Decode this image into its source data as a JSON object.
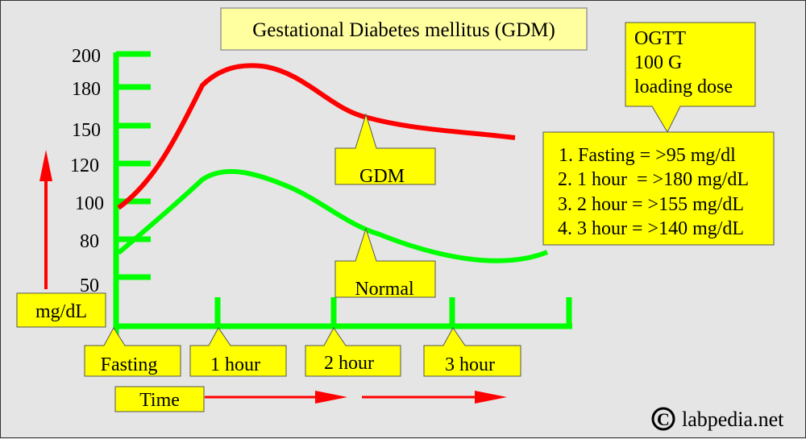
{
  "title": "Gestational Diabetes mellitus (GDM)",
  "y_axis": {
    "unit_label": "mg/dL",
    "ticks": [
      "200",
      "180",
      "150",
      "120",
      "100",
      "80",
      "50"
    ]
  },
  "x_axis": {
    "ticks": [
      "Fasting",
      "1 hour",
      "2 hour",
      "3 hour"
    ],
    "label": "Time"
  },
  "curves": [
    {
      "label": "GDM",
      "color": "#ff0000"
    },
    {
      "label": "Normal",
      "color": "#00ff00"
    }
  ],
  "ogtt_box": {
    "lines": [
      "OGTT",
      "100 G",
      "loading dose"
    ]
  },
  "criteria_box": {
    "lines": [
      "1. Fasting = >95 mg/dl",
      "2. 1 hour  = >180 mg/dL",
      "3. 2 hour = >155 mg/dL",
      "4. 3 hour = >140 mg/dL"
    ]
  },
  "copyright": "labpedia.net",
  "colors": {
    "axis": "#00ff00",
    "arrow": "#ff0000",
    "callout": "#ffff00",
    "title_box": "#ffffa0",
    "background": "#e5e5e5"
  }
}
